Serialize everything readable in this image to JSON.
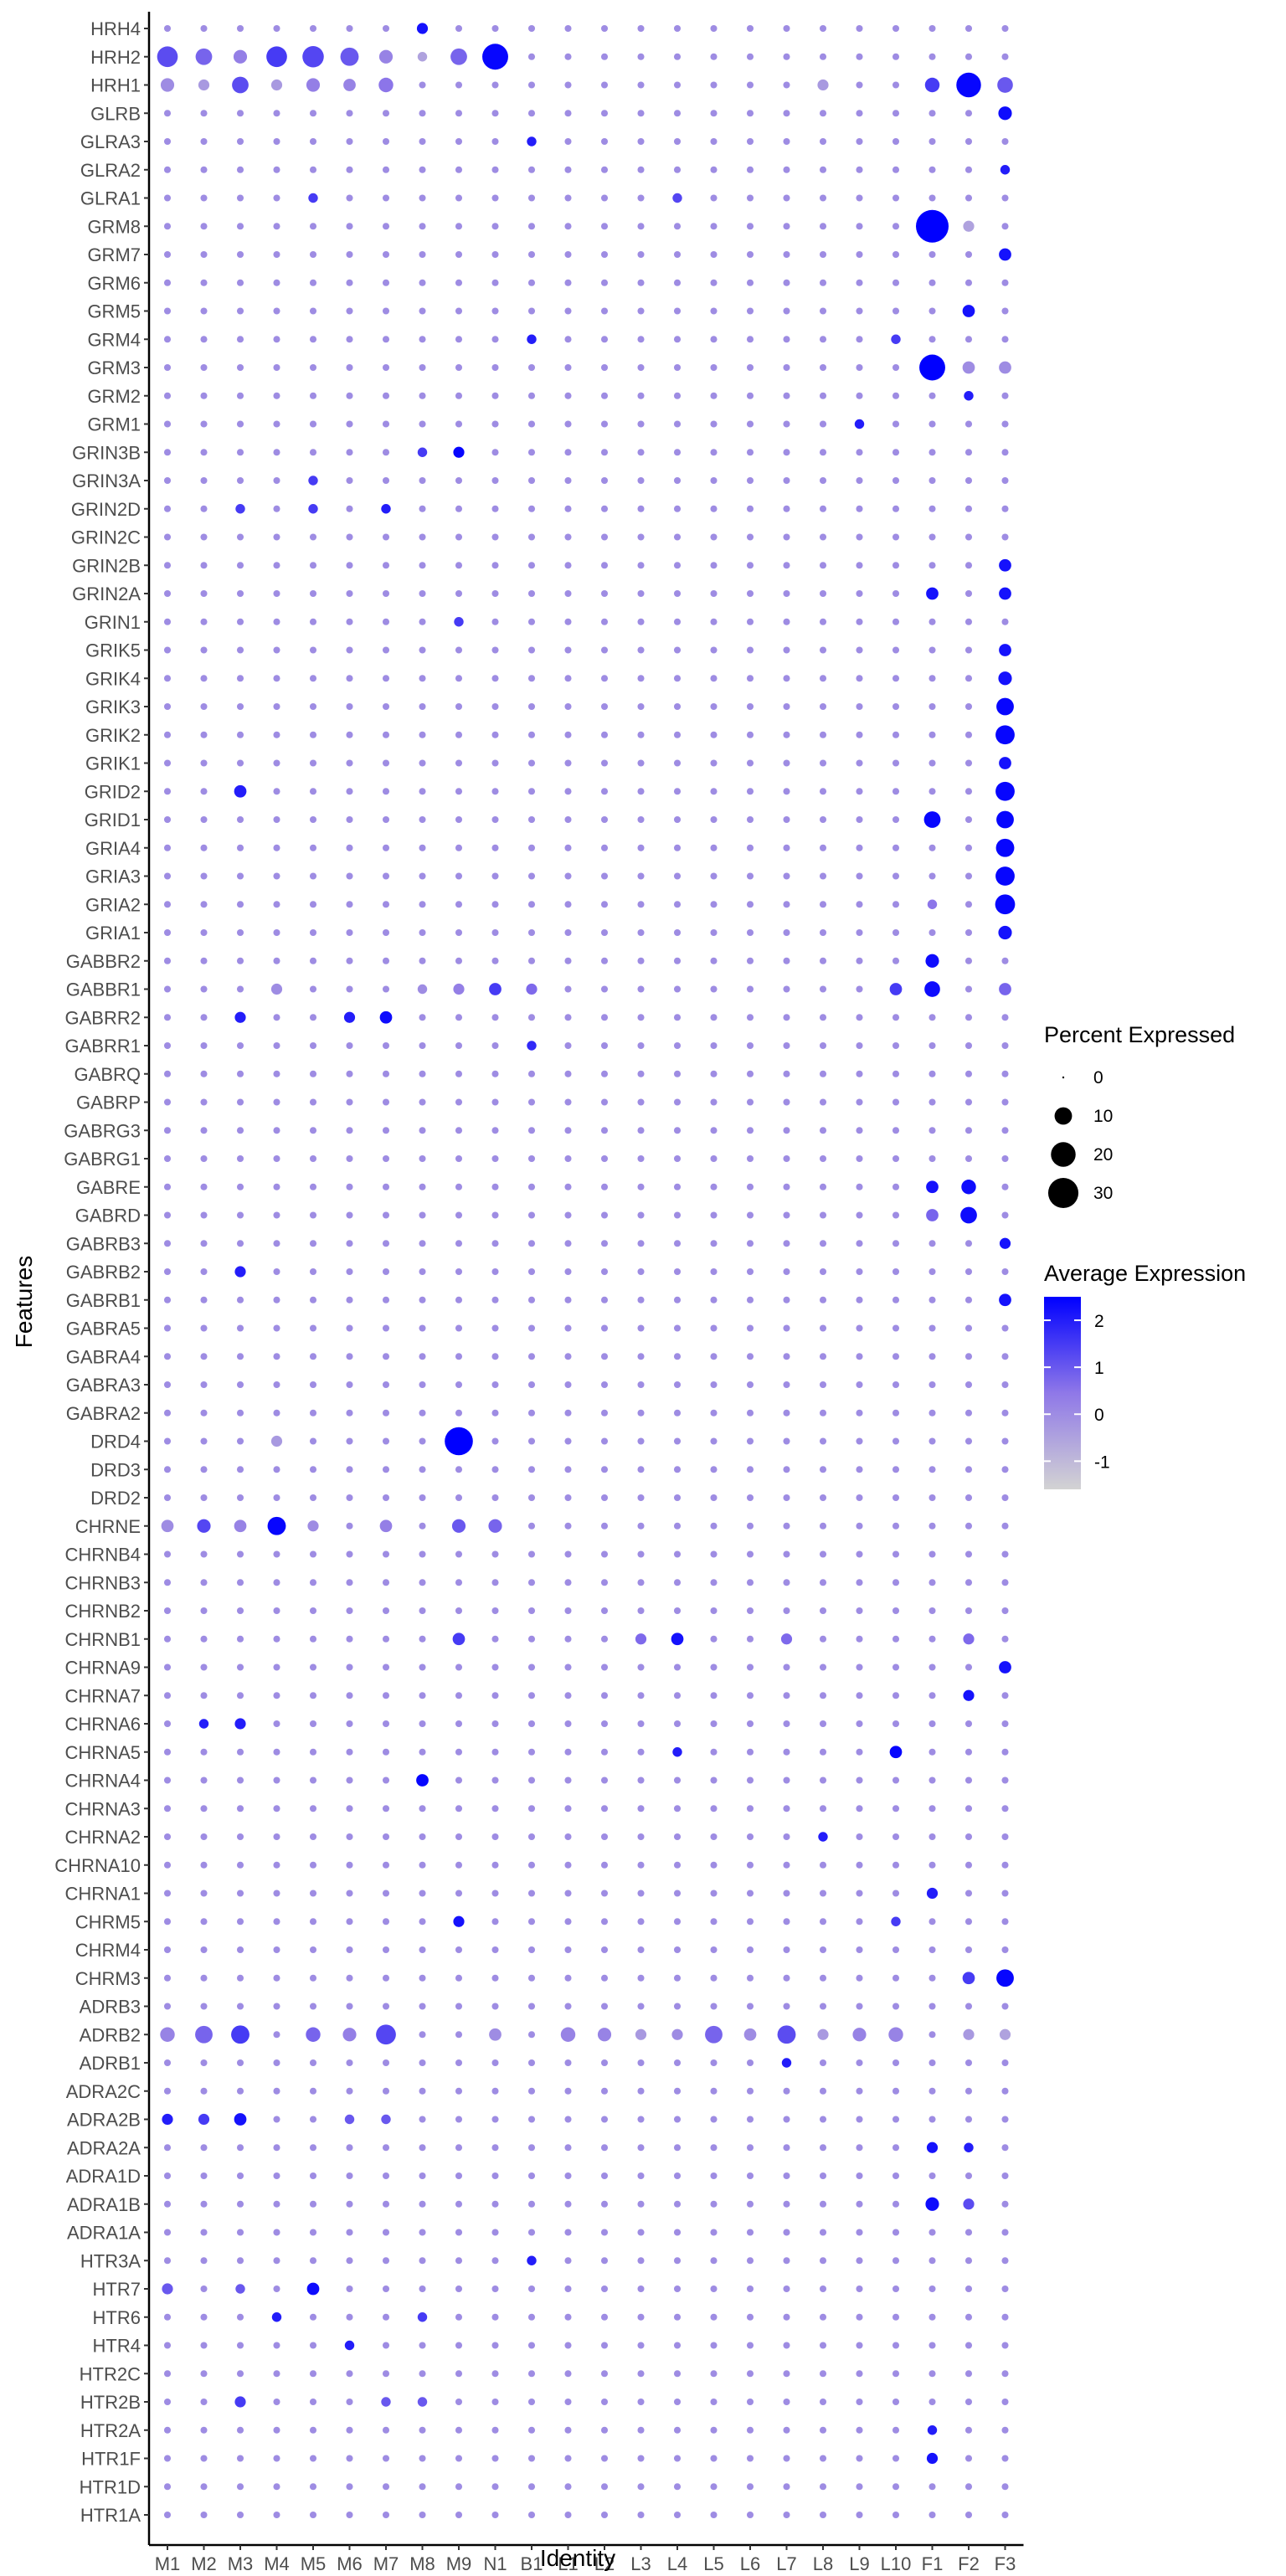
{
  "chart_data": {
    "type": "dotplot",
    "xlabel": "Identity",
    "ylabel": "Features",
    "x_categories": [
      "M1",
      "M2",
      "M3",
      "M4",
      "M5",
      "M6",
      "M7",
      "M8",
      "M9",
      "N1",
      "B1",
      "L1",
      "L2",
      "L3",
      "L4",
      "L5",
      "L6",
      "L7",
      "L8",
      "L9",
      "L10",
      "F1",
      "F2",
      "F3"
    ],
    "y_categories": [
      "HRH4",
      "HRH2",
      "HRH1",
      "GLRB",
      "GLRA3",
      "GLRA2",
      "GLRA1",
      "GRM8",
      "GRM7",
      "GRM6",
      "GRM5",
      "GRM4",
      "GRM3",
      "GRM2",
      "GRM1",
      "GRIN3B",
      "GRIN3A",
      "GRIN2D",
      "GRIN2C",
      "GRIN2B",
      "GRIN2A",
      "GRIN1",
      "GRIK5",
      "GRIK4",
      "GRIK3",
      "GRIK2",
      "GRIK1",
      "GRID2",
      "GRID1",
      "GRIA4",
      "GRIA3",
      "GRIA2",
      "GRIA1",
      "GABBR2",
      "GABBR1",
      "GABRR2",
      "GABRR1",
      "GABRQ",
      "GABRP",
      "GABRG3",
      "GABRG1",
      "GABRE",
      "GABRD",
      "GABRB3",
      "GABRB2",
      "GABRB1",
      "GABRA5",
      "GABRA4",
      "GABRA3",
      "GABRA2",
      "DRD4",
      "DRD3",
      "DRD2",
      "CHRNE",
      "CHRNB4",
      "CHRNB3",
      "CHRNB2",
      "CHRNB1",
      "CHRNA9",
      "CHRNA7",
      "CHRNA6",
      "CHRNA5",
      "CHRNA4",
      "CHRNA3",
      "CHRNA2",
      "CHRNA10",
      "CHRNA1",
      "CHRM5",
      "CHRM4",
      "CHRM3",
      "ADRB3",
      "ADRB2",
      "ADRB1",
      "ADRA2C",
      "ADRA2B",
      "ADRA2A",
      "ADRA1D",
      "ADRA1B",
      "ADRA1A",
      "HTR3A",
      "HTR7",
      "HTR6",
      "HTR4",
      "HTR2C",
      "HTR2B",
      "HTR2A",
      "HTR1F",
      "HTR1D",
      "HTR1A"
    ],
    "default_point": {
      "pct": 1.5,
      "avg": 0.0
    },
    "points": [
      {
        "gene": "HRH4",
        "cluster": "M8",
        "pct": 4,
        "avg": 2.2
      },
      {
        "gene": "HRH2",
        "cluster": "M1",
        "pct": 14,
        "avg": 1.2
      },
      {
        "gene": "HRH2",
        "cluster": "M2",
        "pct": 9,
        "avg": 0.8
      },
      {
        "gene": "HRH2",
        "cluster": "M3",
        "pct": 6,
        "avg": 0.3
      },
      {
        "gene": "HRH2",
        "cluster": "M4",
        "pct": 14,
        "avg": 1.5
      },
      {
        "gene": "HRH2",
        "cluster": "M5",
        "pct": 15,
        "avg": 1.3
      },
      {
        "gene": "HRH2",
        "cluster": "M6",
        "pct": 11,
        "avg": 1.0
      },
      {
        "gene": "HRH2",
        "cluster": "M7",
        "pct": 6,
        "avg": 0.2
      },
      {
        "gene": "HRH2",
        "cluster": "M8",
        "pct": 3,
        "avg": -0.5
      },
      {
        "gene": "HRH2",
        "cluster": "M9",
        "pct": 9,
        "avg": 0.8
      },
      {
        "gene": "HRH2",
        "cluster": "N1",
        "pct": 22,
        "avg": 2.4
      },
      {
        "gene": "HRH1",
        "cluster": "M1",
        "pct": 6,
        "avg": 0.0
      },
      {
        "gene": "HRH1",
        "cluster": "M2",
        "pct": 4,
        "avg": -0.3
      },
      {
        "gene": "HRH1",
        "cluster": "M3",
        "pct": 9,
        "avg": 1.2
      },
      {
        "gene": "HRH1",
        "cluster": "M4",
        "pct": 4,
        "avg": -0.3
      },
      {
        "gene": "HRH1",
        "cluster": "M5",
        "pct": 6,
        "avg": 0.3
      },
      {
        "gene": "HRH1",
        "cluster": "M6",
        "pct": 5,
        "avg": 0.2
      },
      {
        "gene": "HRH1",
        "cluster": "M7",
        "pct": 7,
        "avg": 0.5
      },
      {
        "gene": "HRH1",
        "cluster": "L8",
        "pct": 4,
        "avg": -0.3
      },
      {
        "gene": "HRH1",
        "cluster": "F1",
        "pct": 7,
        "avg": 1.5
      },
      {
        "gene": "HRH1",
        "cluster": "F2",
        "pct": 20,
        "avg": 2.4
      },
      {
        "gene": "HRH1",
        "cluster": "F3",
        "pct": 8,
        "avg": 1.0
      },
      {
        "gene": "GLRB",
        "cluster": "F3",
        "pct": 6,
        "avg": 2.3
      },
      {
        "gene": "GLRA3",
        "cluster": "B1",
        "pct": 3,
        "avg": 2.0
      },
      {
        "gene": "GLRA2",
        "cluster": "F3",
        "pct": 3,
        "avg": 2.0
      },
      {
        "gene": "GLRA1",
        "cluster": "M5",
        "pct": 3,
        "avg": 1.5
      },
      {
        "gene": "GLRA1",
        "cluster": "L4",
        "pct": 3,
        "avg": 1.3
      },
      {
        "gene": "GRM8",
        "cluster": "F1",
        "pct": 35,
        "avg": 2.5
      },
      {
        "gene": "GRM8",
        "cluster": "F2",
        "pct": 4,
        "avg": -0.5
      },
      {
        "gene": "GRM7",
        "cluster": "F3",
        "pct": 5,
        "avg": 2.2
      },
      {
        "gene": "GRM5",
        "cluster": "F2",
        "pct": 5,
        "avg": 2.2
      },
      {
        "gene": "GRM4",
        "cluster": "B1",
        "pct": 3,
        "avg": 2.0
      },
      {
        "gene": "GRM4",
        "cluster": "L10",
        "pct": 3,
        "avg": 1.5
      },
      {
        "gene": "GRM3",
        "cluster": "F1",
        "pct": 22,
        "avg": 2.5
      },
      {
        "gene": "GRM3",
        "cluster": "F2",
        "pct": 5,
        "avg": 0.0
      },
      {
        "gene": "GRM3",
        "cluster": "F3",
        "pct": 5,
        "avg": 0.0
      },
      {
        "gene": "GRM2",
        "cluster": "F2",
        "pct": 3,
        "avg": 2.0
      },
      {
        "gene": "GRM1",
        "cluster": "L9",
        "pct": 3,
        "avg": 2.0
      },
      {
        "gene": "GRIN3B",
        "cluster": "M8",
        "pct": 3,
        "avg": 1.5
      },
      {
        "gene": "GRIN3B",
        "cluster": "M9",
        "pct": 4,
        "avg": 2.4
      },
      {
        "gene": "GRIN3A",
        "cluster": "M5",
        "pct": 3,
        "avg": 1.5
      },
      {
        "gene": "GRIN2D",
        "cluster": "M3",
        "pct": 3,
        "avg": 1.5
      },
      {
        "gene": "GRIN2D",
        "cluster": "M5",
        "pct": 3,
        "avg": 1.5
      },
      {
        "gene": "GRIN2D",
        "cluster": "M7",
        "pct": 3,
        "avg": 2.0
      },
      {
        "gene": "GRIN2B",
        "cluster": "F3",
        "pct": 5,
        "avg": 2.2
      },
      {
        "gene": "GRIN2A",
        "cluster": "F1",
        "pct": 5,
        "avg": 2.2
      },
      {
        "gene": "GRIN2A",
        "cluster": "F3",
        "pct": 5,
        "avg": 2.2
      },
      {
        "gene": "GRIN1",
        "cluster": "M9",
        "pct": 3,
        "avg": 1.5
      },
      {
        "gene": "GRIK5",
        "cluster": "F3",
        "pct": 5,
        "avg": 2.2
      },
      {
        "gene": "GRIK4",
        "cluster": "F3",
        "pct": 6,
        "avg": 2.2
      },
      {
        "gene": "GRIK3",
        "cluster": "F3",
        "pct": 10,
        "avg": 2.4
      },
      {
        "gene": "GRIK2",
        "cluster": "F3",
        "pct": 12,
        "avg": 2.4
      },
      {
        "gene": "GRIK1",
        "cluster": "F3",
        "pct": 5,
        "avg": 2.2
      },
      {
        "gene": "GRID2",
        "cluster": "M3",
        "pct": 5,
        "avg": 2.0
      },
      {
        "gene": "GRID2",
        "cluster": "F3",
        "pct": 12,
        "avg": 2.4
      },
      {
        "gene": "GRID1",
        "cluster": "F1",
        "pct": 9,
        "avg": 2.4
      },
      {
        "gene": "GRID1",
        "cluster": "F3",
        "pct": 10,
        "avg": 2.4
      },
      {
        "gene": "GRIA4",
        "cluster": "F3",
        "pct": 11,
        "avg": 2.4
      },
      {
        "gene": "GRIA3",
        "cluster": "F3",
        "pct": 12,
        "avg": 2.4
      },
      {
        "gene": "GRIA2",
        "cluster": "F3",
        "pct": 13,
        "avg": 2.4
      },
      {
        "gene": "GRIA2",
        "cluster": "F1",
        "pct": 3,
        "avg": 0.5
      },
      {
        "gene": "GRIA1",
        "cluster": "F3",
        "pct": 6,
        "avg": 2.2
      },
      {
        "gene": "GABBR2",
        "cluster": "F1",
        "pct": 6,
        "avg": 2.3
      },
      {
        "gene": "GABBR1",
        "cluster": "M4",
        "pct": 4,
        "avg": 0.0
      },
      {
        "gene": "GABBR1",
        "cluster": "M8",
        "pct": 3,
        "avg": 0.0
      },
      {
        "gene": "GABBR1",
        "cluster": "M9",
        "pct": 4,
        "avg": 0.3
      },
      {
        "gene": "GABBR1",
        "cluster": "N1",
        "pct": 5,
        "avg": 1.5
      },
      {
        "gene": "GABBR1",
        "cluster": "B1",
        "pct": 4,
        "avg": 0.7
      },
      {
        "gene": "GABBR1",
        "cluster": "L10",
        "pct": 5,
        "avg": 1.5
      },
      {
        "gene": "GABBR1",
        "cluster": "F1",
        "pct": 8,
        "avg": 2.3
      },
      {
        "gene": "GABBR1",
        "cluster": "F3",
        "pct": 5,
        "avg": 0.8
      },
      {
        "gene": "GABRR2",
        "cluster": "M3",
        "pct": 4,
        "avg": 2.0
      },
      {
        "gene": "GABRR2",
        "cluster": "M6",
        "pct": 4,
        "avg": 2.0
      },
      {
        "gene": "GABRR2",
        "cluster": "M7",
        "pct": 5,
        "avg": 2.3
      },
      {
        "gene": "GABRR1",
        "cluster": "B1",
        "pct": 3,
        "avg": 1.8
      },
      {
        "gene": "GABRE",
        "cluster": "F1",
        "pct": 5,
        "avg": 2.2
      },
      {
        "gene": "GABRE",
        "cluster": "F2",
        "pct": 7,
        "avg": 2.3
      },
      {
        "gene": "GABRD",
        "cluster": "F1",
        "pct": 5,
        "avg": 0.8
      },
      {
        "gene": "GABRD",
        "cluster": "F2",
        "pct": 9,
        "avg": 2.3
      },
      {
        "gene": "GABRB3",
        "cluster": "F3",
        "pct": 4,
        "avg": 2.2
      },
      {
        "gene": "GABRB2",
        "cluster": "M3",
        "pct": 4,
        "avg": 2.0
      },
      {
        "gene": "GABRB1",
        "cluster": "F3",
        "pct": 5,
        "avg": 2.2
      },
      {
        "gene": "DRD4",
        "cluster": "M9",
        "pct": 26,
        "avg": 2.5
      },
      {
        "gene": "DRD4",
        "cluster": "M4",
        "pct": 4,
        "avg": -0.3
      },
      {
        "gene": "CHRNE",
        "cluster": "M1",
        "pct": 5,
        "avg": 0.0
      },
      {
        "gene": "CHRNE",
        "cluster": "M2",
        "pct": 6,
        "avg": 1.3
      },
      {
        "gene": "CHRNE",
        "cluster": "M3",
        "pct": 5,
        "avg": 0.2
      },
      {
        "gene": "CHRNE",
        "cluster": "M4",
        "pct": 11,
        "avg": 2.4
      },
      {
        "gene": "CHRNE",
        "cluster": "M5",
        "pct": 4,
        "avg": 0.0
      },
      {
        "gene": "CHRNE",
        "cluster": "M7",
        "pct": 5,
        "avg": 0.3
      },
      {
        "gene": "CHRNE",
        "cluster": "M9",
        "pct": 6,
        "avg": 1.0
      },
      {
        "gene": "CHRNE",
        "cluster": "N1",
        "pct": 6,
        "avg": 0.8
      },
      {
        "gene": "CHRNB1",
        "cluster": "M9",
        "pct": 5,
        "avg": 1.5
      },
      {
        "gene": "CHRNB1",
        "cluster": "L3",
        "pct": 4,
        "avg": 0.7
      },
      {
        "gene": "CHRNB1",
        "cluster": "L4",
        "pct": 5,
        "avg": 2.2
      },
      {
        "gene": "CHRNB1",
        "cluster": "L7",
        "pct": 4,
        "avg": 0.7
      },
      {
        "gene": "CHRNB1",
        "cluster": "F2",
        "pct": 4,
        "avg": 0.7
      },
      {
        "gene": "CHRNA9",
        "cluster": "F3",
        "pct": 5,
        "avg": 2.2
      },
      {
        "gene": "CHRNA7",
        "cluster": "F2",
        "pct": 4,
        "avg": 2.2
      },
      {
        "gene": "CHRNA6",
        "cluster": "M2",
        "pct": 3,
        "avg": 2.0
      },
      {
        "gene": "CHRNA6",
        "cluster": "M3",
        "pct": 4,
        "avg": 2.0
      },
      {
        "gene": "CHRNA5",
        "cluster": "L4",
        "pct": 3,
        "avg": 2.0
      },
      {
        "gene": "CHRNA5",
        "cluster": "L10",
        "pct": 5,
        "avg": 2.4
      },
      {
        "gene": "CHRNA4",
        "cluster": "M8",
        "pct": 5,
        "avg": 2.4
      },
      {
        "gene": "CHRNA2",
        "cluster": "L8",
        "pct": 3,
        "avg": 2.0
      },
      {
        "gene": "CHRNA1",
        "cluster": "F1",
        "pct": 4,
        "avg": 2.0
      },
      {
        "gene": "CHRM5",
        "cluster": "M9",
        "pct": 4,
        "avg": 2.2
      },
      {
        "gene": "CHRM5",
        "cluster": "L10",
        "pct": 3,
        "avg": 1.5
      },
      {
        "gene": "CHRM3",
        "cluster": "F2",
        "pct": 5,
        "avg": 1.5
      },
      {
        "gene": "CHRM3",
        "cluster": "F3",
        "pct": 10,
        "avg": 2.4
      },
      {
        "gene": "ADRB2",
        "cluster": "M1",
        "pct": 7,
        "avg": 0.2
      },
      {
        "gene": "ADRB2",
        "cluster": "M2",
        "pct": 10,
        "avg": 0.8
      },
      {
        "gene": "ADRB2",
        "cluster": "M3",
        "pct": 11,
        "avg": 1.5
      },
      {
        "gene": "ADRB2",
        "cluster": "M5",
        "pct": 7,
        "avg": 0.8
      },
      {
        "gene": "ADRB2",
        "cluster": "M6",
        "pct": 6,
        "avg": 0.3
      },
      {
        "gene": "ADRB2",
        "cluster": "M7",
        "pct": 13,
        "avg": 1.3
      },
      {
        "gene": "ADRB2",
        "cluster": "N1",
        "pct": 5,
        "avg": 0.0
      },
      {
        "gene": "ADRB2",
        "cluster": "L1",
        "pct": 7,
        "avg": 0.2
      },
      {
        "gene": "ADRB2",
        "cluster": "L2",
        "pct": 6,
        "avg": 0.2
      },
      {
        "gene": "ADRB2",
        "cluster": "L3",
        "pct": 4,
        "avg": -0.3
      },
      {
        "gene": "ADRB2",
        "cluster": "L4",
        "pct": 4,
        "avg": 0.0
      },
      {
        "gene": "ADRB2",
        "cluster": "L5",
        "pct": 10,
        "avg": 0.8
      },
      {
        "gene": "ADRB2",
        "cluster": "L6",
        "pct": 5,
        "avg": 0.0
      },
      {
        "gene": "ADRB2",
        "cluster": "L7",
        "pct": 11,
        "avg": 1.2
      },
      {
        "gene": "ADRB2",
        "cluster": "L8",
        "pct": 4,
        "avg": -0.3
      },
      {
        "gene": "ADRB2",
        "cluster": "L9",
        "pct": 6,
        "avg": 0.2
      },
      {
        "gene": "ADRB2",
        "cluster": "L10",
        "pct": 7,
        "avg": 0.2
      },
      {
        "gene": "ADRB2",
        "cluster": "F2",
        "pct": 4,
        "avg": -0.3
      },
      {
        "gene": "ADRB2",
        "cluster": "F3",
        "pct": 4,
        "avg": -0.5
      },
      {
        "gene": "ADRB1",
        "cluster": "L7",
        "pct": 3,
        "avg": 2.0
      },
      {
        "gene": "ADRA2B",
        "cluster": "M1",
        "pct": 4,
        "avg": 2.0
      },
      {
        "gene": "ADRA2B",
        "cluster": "M2",
        "pct": 4,
        "avg": 1.5
      },
      {
        "gene": "ADRA2B",
        "cluster": "M3",
        "pct": 5,
        "avg": 2.2
      },
      {
        "gene": "ADRA2B",
        "cluster": "M6",
        "pct": 3,
        "avg": 1.0
      },
      {
        "gene": "ADRA2B",
        "cluster": "M7",
        "pct": 3,
        "avg": 1.0
      },
      {
        "gene": "ADRA2A",
        "cluster": "F1",
        "pct": 4,
        "avg": 2.2
      },
      {
        "gene": "ADRA2A",
        "cluster": "F2",
        "pct": 3,
        "avg": 2.0
      },
      {
        "gene": "ADRA1B",
        "cluster": "F1",
        "pct": 6,
        "avg": 2.3
      },
      {
        "gene": "ADRA1B",
        "cluster": "F2",
        "pct": 4,
        "avg": 1.2
      },
      {
        "gene": "HTR3A",
        "cluster": "B1",
        "pct": 3,
        "avg": 2.0
      },
      {
        "gene": "HTR7",
        "cluster": "M1",
        "pct": 4,
        "avg": 1.0
      },
      {
        "gene": "HTR7",
        "cluster": "M3",
        "pct": 3,
        "avg": 1.0
      },
      {
        "gene": "HTR7",
        "cluster": "M5",
        "pct": 5,
        "avg": 2.3
      },
      {
        "gene": "HTR6",
        "cluster": "M4",
        "pct": 3,
        "avg": 2.0
      },
      {
        "gene": "HTR6",
        "cluster": "M8",
        "pct": 3,
        "avg": 1.5
      },
      {
        "gene": "HTR4",
        "cluster": "M6",
        "pct": 3,
        "avg": 2.0
      },
      {
        "gene": "HTR2B",
        "cluster": "M3",
        "pct": 4,
        "avg": 1.5
      },
      {
        "gene": "HTR2B",
        "cluster": "M7",
        "pct": 3,
        "avg": 1.0
      },
      {
        "gene": "HTR2B",
        "cluster": "M8",
        "pct": 3,
        "avg": 1.0
      },
      {
        "gene": "HTR2A",
        "cluster": "F1",
        "pct": 3,
        "avg": 2.0
      },
      {
        "gene": "HTR1F",
        "cluster": "F1",
        "pct": 4,
        "avg": 2.2
      }
    ],
    "legend": {
      "size_title": "Percent Expressed",
      "size_breaks": [
        0,
        10,
        20,
        30
      ],
      "size_labels": [
        "0",
        "10",
        "20",
        "30"
      ],
      "color_title": "Average Expression",
      "color_breaks": [
        2,
        1,
        0,
        -1
      ],
      "color_labels": [
        "2",
        "1",
        "0",
        "-1"
      ],
      "color_range": [
        -1.6,
        2.5
      ],
      "color_low": "#d3d3d3",
      "color_high": "#0000ff"
    },
    "legend_position": "right",
    "grid": false
  }
}
